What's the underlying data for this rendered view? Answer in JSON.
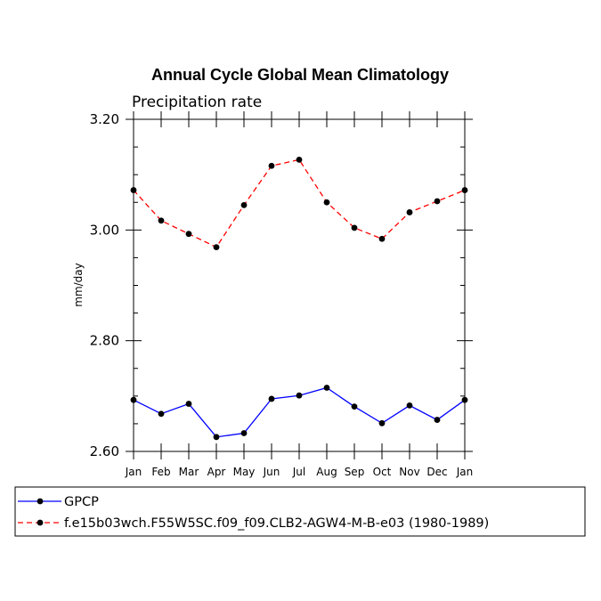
{
  "chart_data": {
    "type": "line",
    "title": "Annual Cycle Global Mean Climatology",
    "subtitle": "Precipitation rate",
    "ylabel": "mm/day",
    "xlabel": "",
    "categories": [
      "Jan",
      "Feb",
      "Mar",
      "Apr",
      "May",
      "Jun",
      "Jul",
      "Aug",
      "Sep",
      "Oct",
      "Nov",
      "Dec",
      "Jan"
    ],
    "ylim": [
      2.6,
      3.2
    ],
    "yticks": [
      "2.60",
      "2.80",
      "3.00",
      "3.20"
    ],
    "grid": false,
    "legend_position": "bottom",
    "series": [
      {
        "name": "GPCP",
        "color": "#0000ff",
        "line_style": "solid",
        "marker": "dot",
        "values": [
          2.693,
          2.668,
          2.686,
          2.626,
          2.633,
          2.695,
          2.701,
          2.715,
          2.681,
          2.651,
          2.683,
          2.657,
          2.693
        ]
      },
      {
        "name": "f.e15b03wch.F55W5SC.f09_f09.CLB2-AGW4-M-B-e03 (1980-1989)",
        "color": "#ff0000",
        "line_style": "dashed",
        "marker": "dot",
        "values": [
          3.072,
          3.017,
          2.993,
          2.969,
          3.045,
          3.116,
          3.127,
          3.05,
          3.004,
          2.984,
          3.032,
          3.052,
          3.072
        ]
      }
    ]
  }
}
